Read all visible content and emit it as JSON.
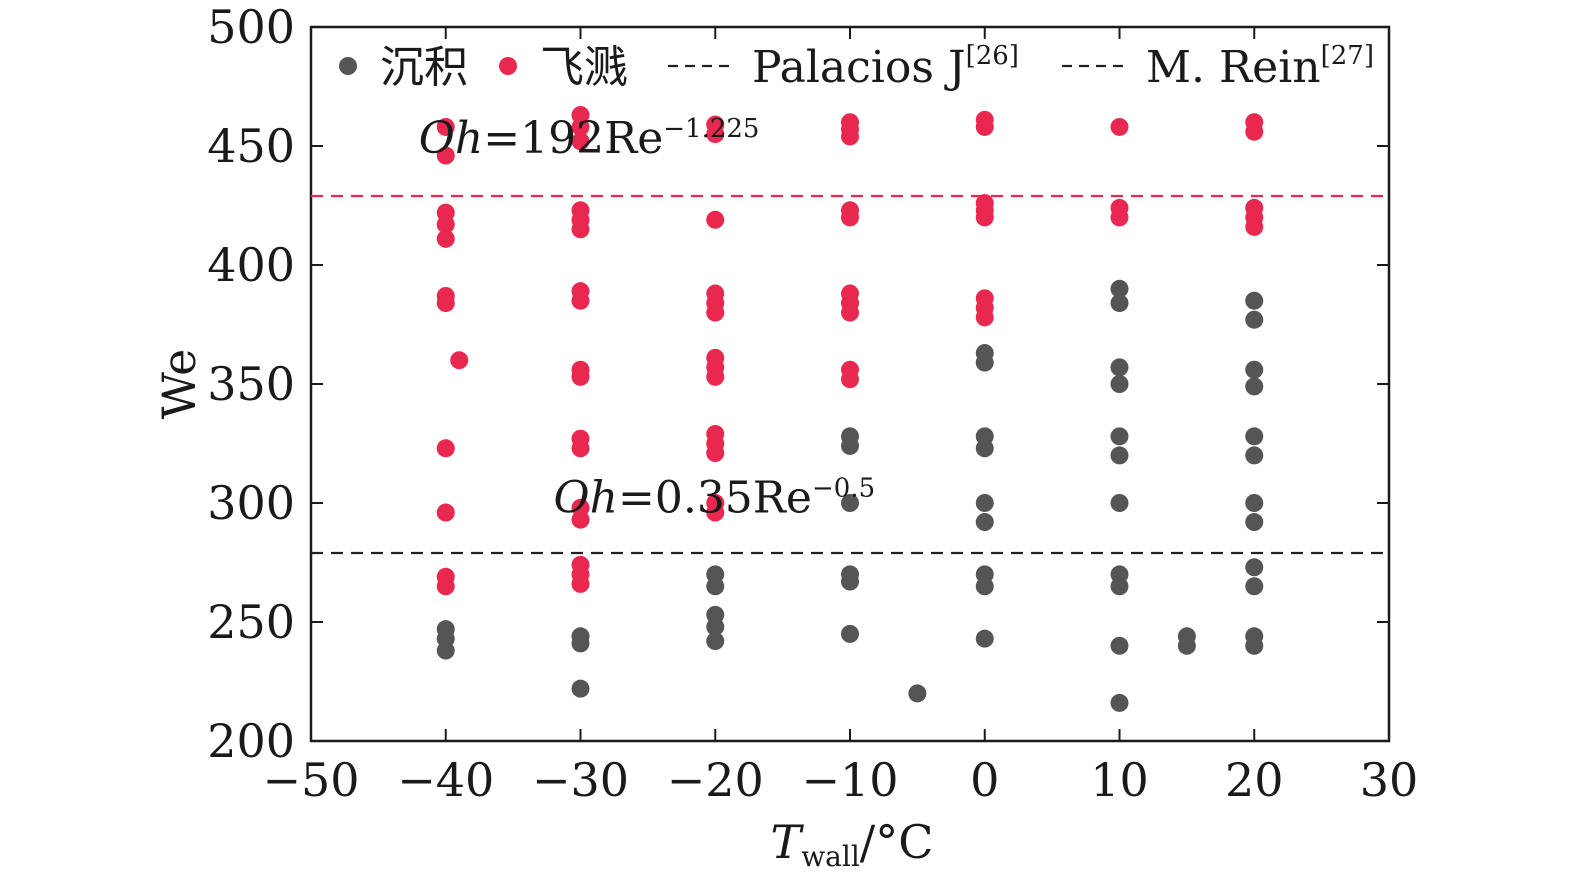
{
  "chart_data": {
    "type": "scatter",
    "xlim": [
      -50,
      30
    ],
    "ylim": [
      200,
      500
    ],
    "x_ticks": [
      -50,
      -40,
      -30,
      -20,
      -10,
      0,
      10,
      20,
      30
    ],
    "y_ticks": [
      200,
      250,
      300,
      350,
      400,
      450,
      500
    ],
    "x_tick_labels": [
      "−50",
      "−40",
      "−30",
      "−20",
      "−10",
      "0",
      "10",
      "20",
      "30"
    ],
    "y_tick_labels": [
      "200",
      "250",
      "300",
      "350",
      "400",
      "450",
      "500"
    ],
    "xlabel": {
      "main": "T",
      "sub": "wall",
      "unit": "/°C"
    },
    "ylabel": "We",
    "grid": false,
    "legend_position": "top",
    "series": [
      {
        "name": "沉积",
        "color": "#555555",
        "points": [
          [
            -40,
            247
          ],
          [
            -40,
            243
          ],
          [
            -40,
            238
          ],
          [
            -30,
            244
          ],
          [
            -30,
            241
          ],
          [
            -30,
            222
          ],
          [
            -20,
            270
          ],
          [
            -20,
            265
          ],
          [
            -20,
            253
          ],
          [
            -20,
            248
          ],
          [
            -20,
            242
          ],
          [
            -10,
            328
          ],
          [
            -10,
            324
          ],
          [
            -10,
            300
          ],
          [
            -10,
            270
          ],
          [
            -10,
            267
          ],
          [
            -10,
            245
          ],
          [
            -5,
            220
          ],
          [
            0,
            363
          ],
          [
            0,
            359
          ],
          [
            0,
            328
          ],
          [
            0,
            323
          ],
          [
            0,
            300
          ],
          [
            0,
            292
          ],
          [
            0,
            270
          ],
          [
            0,
            265
          ],
          [
            0,
            243
          ],
          [
            10,
            390
          ],
          [
            10,
            384
          ],
          [
            10,
            357
          ],
          [
            10,
            350
          ],
          [
            10,
            328
          ],
          [
            10,
            320
          ],
          [
            10,
            300
          ],
          [
            10,
            270
          ],
          [
            10,
            265
          ],
          [
            10,
            240
          ],
          [
            10,
            216
          ],
          [
            15,
            244
          ],
          [
            15,
            240
          ],
          [
            20,
            385
          ],
          [
            20,
            377
          ],
          [
            20,
            356
          ],
          [
            20,
            349
          ],
          [
            20,
            328
          ],
          [
            20,
            320
          ],
          [
            20,
            300
          ],
          [
            20,
            292
          ],
          [
            20,
            273
          ],
          [
            20,
            265
          ],
          [
            20,
            244
          ],
          [
            20,
            240
          ]
        ]
      },
      {
        "name": "飞溅",
        "color": "#e8284f",
        "points": [
          [
            -40,
            458
          ],
          [
            -40,
            446
          ],
          [
            -40,
            422
          ],
          [
            -40,
            417
          ],
          [
            -40,
            411
          ],
          [
            -40,
            387
          ],
          [
            -40,
            384
          ],
          [
            -39,
            360
          ],
          [
            -40,
            323
          ],
          [
            -40,
            296
          ],
          [
            -40,
            269
          ],
          [
            -40,
            265
          ],
          [
            -30,
            463
          ],
          [
            -30,
            458
          ],
          [
            -30,
            452
          ],
          [
            -30,
            423
          ],
          [
            -30,
            419
          ],
          [
            -30,
            415
          ],
          [
            -30,
            389
          ],
          [
            -30,
            385
          ],
          [
            -30,
            356
          ],
          [
            -30,
            353
          ],
          [
            -30,
            327
          ],
          [
            -30,
            323
          ],
          [
            -30,
            298
          ],
          [
            -30,
            293
          ],
          [
            -30,
            274
          ],
          [
            -30,
            270
          ],
          [
            -30,
            266
          ],
          [
            -20,
            459
          ],
          [
            -20,
            455
          ],
          [
            -20,
            419
          ],
          [
            -20,
            388
          ],
          [
            -20,
            384
          ],
          [
            -20,
            380
          ],
          [
            -20,
            361
          ],
          [
            -20,
            357
          ],
          [
            -20,
            353
          ],
          [
            -20,
            329
          ],
          [
            -20,
            325
          ],
          [
            -20,
            321
          ],
          [
            -20,
            300
          ],
          [
            -20,
            296
          ],
          [
            -10,
            460
          ],
          [
            -10,
            457
          ],
          [
            -10,
            454
          ],
          [
            -10,
            423
          ],
          [
            -10,
            420
          ],
          [
            -10,
            388
          ],
          [
            -10,
            384
          ],
          [
            -10,
            380
          ],
          [
            -10,
            356
          ],
          [
            -10,
            352
          ],
          [
            0,
            461
          ],
          [
            0,
            458
          ],
          [
            0,
            426
          ],
          [
            0,
            423
          ],
          [
            0,
            420
          ],
          [
            0,
            386
          ],
          [
            0,
            382
          ],
          [
            0,
            378
          ],
          [
            10,
            458
          ],
          [
            10,
            424
          ],
          [
            10,
            420
          ],
          [
            20,
            460
          ],
          [
            20,
            456
          ],
          [
            20,
            424
          ],
          [
            20,
            420
          ],
          [
            20,
            416
          ]
        ]
      }
    ],
    "legend": [
      {
        "type": "marker",
        "label": "沉积",
        "color": "#555555"
      },
      {
        "type": "marker",
        "label": "飞溅",
        "color": "#e8284f"
      },
      {
        "type": "dashed-line",
        "label": "Palacios J",
        "sup": "[26]",
        "color": "#222222"
      },
      {
        "type": "dashed-line",
        "label": "M. Rein",
        "sup": "[27]",
        "color": "#222222"
      }
    ],
    "reference_lines": [
      {
        "y": 429,
        "color": "#e8284f",
        "style": "dashed",
        "label_italic": "Oh",
        "label_rest": "=192Re",
        "label_sup": "−1.225",
        "label_x": -42,
        "label_y": 447
      },
      {
        "y": 279,
        "color": "#222222",
        "style": "dashed",
        "label_italic": "Oh",
        "label_rest": "=0.35Re",
        "label_sup": "−0.5",
        "label_x": -32,
        "label_y": 296
      }
    ]
  }
}
